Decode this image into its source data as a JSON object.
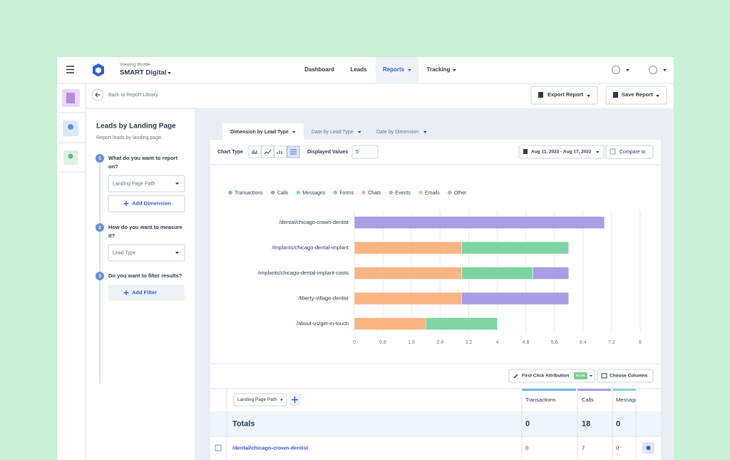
{
  "nav": {
    "profile_label": "Viewing Profile",
    "profile_name": "SMART Digital",
    "items": [
      "Dashboard",
      "Leads",
      "Reports",
      "Tracking"
    ]
  },
  "toolbar": {
    "back": "Back to Report Library",
    "export": "Export Report",
    "save": "Save Report"
  },
  "sidebar": {
    "title": "Leads by Landing Page",
    "subtitle": "Report leads by landing page.",
    "steps": [
      {
        "number": 1,
        "question": [
          "What do you want to report",
          "on?"
        ],
        "select": "Landing Page Path",
        "button": "Add Dimension"
      },
      {
        "number": 2,
        "question": [
          "How do you want to measure",
          "it?"
        ],
        "select": "Lead Type"
      },
      {
        "number": 3,
        "question": [
          "Do you want to filter results?"
        ],
        "button": "Add Filter"
      }
    ]
  },
  "tabs": [
    "Dimension by Lead Type",
    "Date by Lead Type",
    "Date by Dimension"
  ],
  "controls": {
    "chart_type": "Chart Type",
    "displayed_values_label": "Displayed Values",
    "displayed_values": 5,
    "date_range": "Aug 11, 2022 - Aug 17, 2022",
    "compare": "Compare to"
  },
  "chart_data": {
    "type": "bar",
    "orientation": "horizontal",
    "stacked": true,
    "categories": [
      "/dental/chicago-crown-dentist",
      "/implants/chicago-dental-implant",
      "/implants/chicago-dental-implant-costs",
      "/liberty-village-dentist",
      "/about-us/get-in-touch"
    ],
    "series": [
      {
        "name": "Transactions",
        "color": "#6cb6ea",
        "values": [
          0,
          0,
          0,
          0,
          0
        ]
      },
      {
        "name": "Calls",
        "color": "#a99de6",
        "values": [
          7,
          0,
          1,
          3,
          0
        ]
      },
      {
        "name": "Messages",
        "color": "#80d9ca",
        "values": [
          0,
          0,
          0,
          0,
          0
        ]
      },
      {
        "name": "Forms",
        "color": "#7dd4a2",
        "values": [
          0,
          3,
          2,
          0,
          2
        ]
      },
      {
        "name": "Chats",
        "color": "#f9b483",
        "values": [
          0,
          3,
          3,
          3,
          2
        ]
      },
      {
        "name": "Events",
        "color": "#e993da",
        "values": [
          0,
          0,
          0,
          0,
          0
        ]
      },
      {
        "name": "Emails",
        "color": "#f7c38e",
        "values": [
          0,
          0,
          0,
          0,
          0
        ]
      },
      {
        "name": "Other",
        "color": "#bdb4aa",
        "values": [
          0,
          0,
          0,
          0,
          0
        ]
      }
    ],
    "xlim": [
      0,
      8
    ],
    "xticks": [
      0,
      0.8,
      1.6,
      2.4,
      3.2,
      4,
      4.8,
      5.6,
      6.4,
      7.2,
      8
    ],
    "grid": true,
    "legend": "top"
  },
  "table": {
    "attribution": "First Click Attribution",
    "badge": "ELITE",
    "choose_columns": "Choose Columns",
    "dimension": "Landing Page Path",
    "columns": [
      "Transactions",
      "Calls",
      "Messages"
    ],
    "totals_label": "Totals",
    "totals": [
      0,
      18,
      0
    ],
    "rows": [
      {
        "page": "/dental/chicago-crown-dentist",
        "values": [
          0,
          7,
          0
        ]
      }
    ]
  }
}
